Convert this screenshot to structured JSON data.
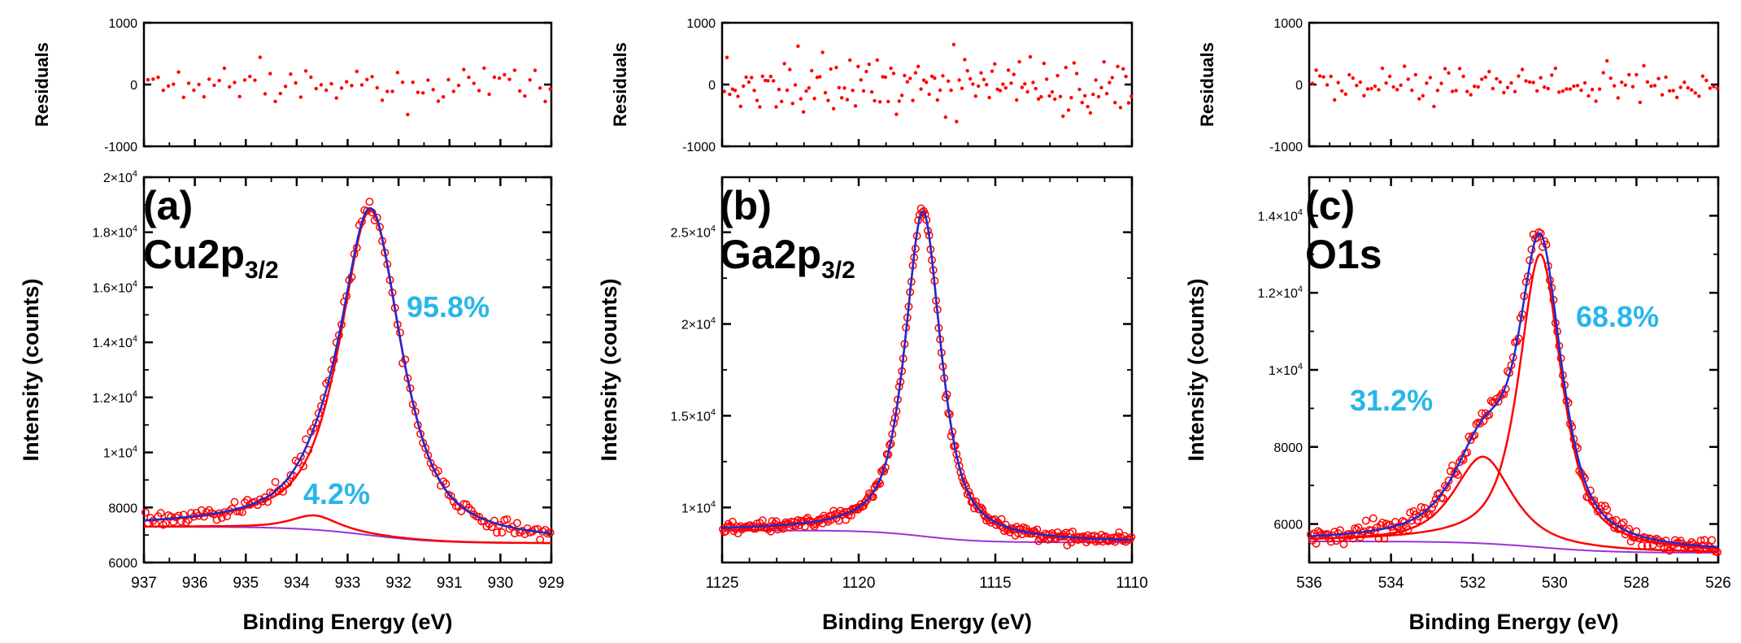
{
  "colors": {
    "residual": "#ff0000",
    "data": "#ff0000",
    "envelope": "#1f2bd0",
    "component": "#ff0000",
    "background": "#9b30d8",
    "annotation": "#29b6e8"
  },
  "chart_data": [
    {
      "type": "scatter",
      "panel_label": "(a)",
      "element": "Cu2p",
      "element_subscript": "3/2",
      "xlabel": "Binding Energy (eV)",
      "ylabel": "Intensity (counts)",
      "residual_label": "Residuals",
      "xlim": [
        937,
        929
      ],
      "ylim": [
        6000,
        20000
      ],
      "x_ticks": [
        "937",
        "936",
        "935",
        "934",
        "933",
        "932",
        "931",
        "930",
        "929"
      ],
      "y_ticks": [
        {
          "mant": "6000",
          "exp": ""
        },
        {
          "mant": "8000",
          "exp": ""
        },
        {
          "mant": "1×10",
          "exp": "4"
        },
        {
          "mant": "1.2×10",
          "exp": "4"
        },
        {
          "mant": "1.4×10",
          "exp": "4"
        },
        {
          "mant": "1.6×10",
          "exp": "4"
        },
        {
          "mant": "1.8×10",
          "exp": "4"
        },
        {
          "mant": "2×10",
          "exp": "4"
        }
      ],
      "res_ticks": [
        "1000",
        "0",
        "-1000"
      ],
      "res_ylim": [
        -1000,
        1000
      ],
      "baseline": 7300,
      "step": 600,
      "bg_center": 932.6,
      "bg_width": 0.7,
      "components": [
        {
          "center": 932.55,
          "height": 11800,
          "width": 0.72,
          "label": "95.8%"
        },
        {
          "center": 933.65,
          "height": 520,
          "width": 0.55,
          "label": "4.2%"
        }
      ],
      "data_step": 0.05,
      "noise": 130,
      "res_noise": 170
    },
    {
      "type": "scatter",
      "panel_label": "(b)",
      "element": "Ga2p",
      "element_subscript": "3/2",
      "xlabel": "Binding Energy (eV)",
      "ylabel": "Intensity (counts)",
      "residual_label": "Residuals",
      "xlim": [
        1125,
        1110
      ],
      "ylim": [
        7000,
        28000
      ],
      "x_ticks": [
        "1125",
        "1120",
        "1115",
        "1110"
      ],
      "x_minor_step": 1,
      "y_ticks": [
        {
          "mant": "1×10",
          "exp": "4"
        },
        {
          "mant": "1.5×10",
          "exp": "4"
        },
        {
          "mant": "2×10",
          "exp": "4"
        },
        {
          "mant": "2.5×10",
          "exp": "4"
        }
      ],
      "res_ticks": [
        "1000",
        "0",
        "-1000"
      ],
      "res_ylim": [
        -1000,
        1000
      ],
      "baseline": 8750,
      "step": 650,
      "bg_center": 1117.6,
      "bg_width": 1.0,
      "components": [
        {
          "center": 1117.65,
          "height": 17700,
          "width": 0.78,
          "label": ""
        }
      ],
      "data_step": 0.05,
      "noise": 150,
      "res_noise": 230
    },
    {
      "type": "scatter",
      "panel_label": "(c)",
      "element": "O1s",
      "element_subscript": "",
      "xlabel": "Binding Energy (eV)",
      "ylabel": "Intensity (counts)",
      "residual_label": "Residuals",
      "xlim": [
        536,
        526
      ],
      "ylim": [
        5000,
        15000
      ],
      "x_ticks": [
        "536",
        "534",
        "532",
        "530",
        "528",
        "526"
      ],
      "x_minor_step": 0.5,
      "y_ticks": [
        {
          "mant": "6000",
          "exp": ""
        },
        {
          "mant": "8000",
          "exp": ""
        },
        {
          "mant": "1×10",
          "exp": "4"
        },
        {
          "mant": "1.2×10",
          "exp": "4"
        },
        {
          "mant": "1.4×10",
          "exp": "4"
        }
      ],
      "res_ticks": [
        "1000",
        "0",
        "-1000"
      ],
      "res_ylim": [
        -1000,
        1000
      ],
      "baseline": 5550,
      "step": 300,
      "bg_center": 530.4,
      "bg_width": 0.9,
      "components": [
        {
          "center": 530.35,
          "height": 7600,
          "width": 0.62,
          "label": "68.8%"
        },
        {
          "center": 531.75,
          "height": 2250,
          "width": 0.85,
          "label": "31.2%"
        }
      ],
      "data_step": 0.045,
      "noise": 120,
      "res_noise": 150
    }
  ]
}
